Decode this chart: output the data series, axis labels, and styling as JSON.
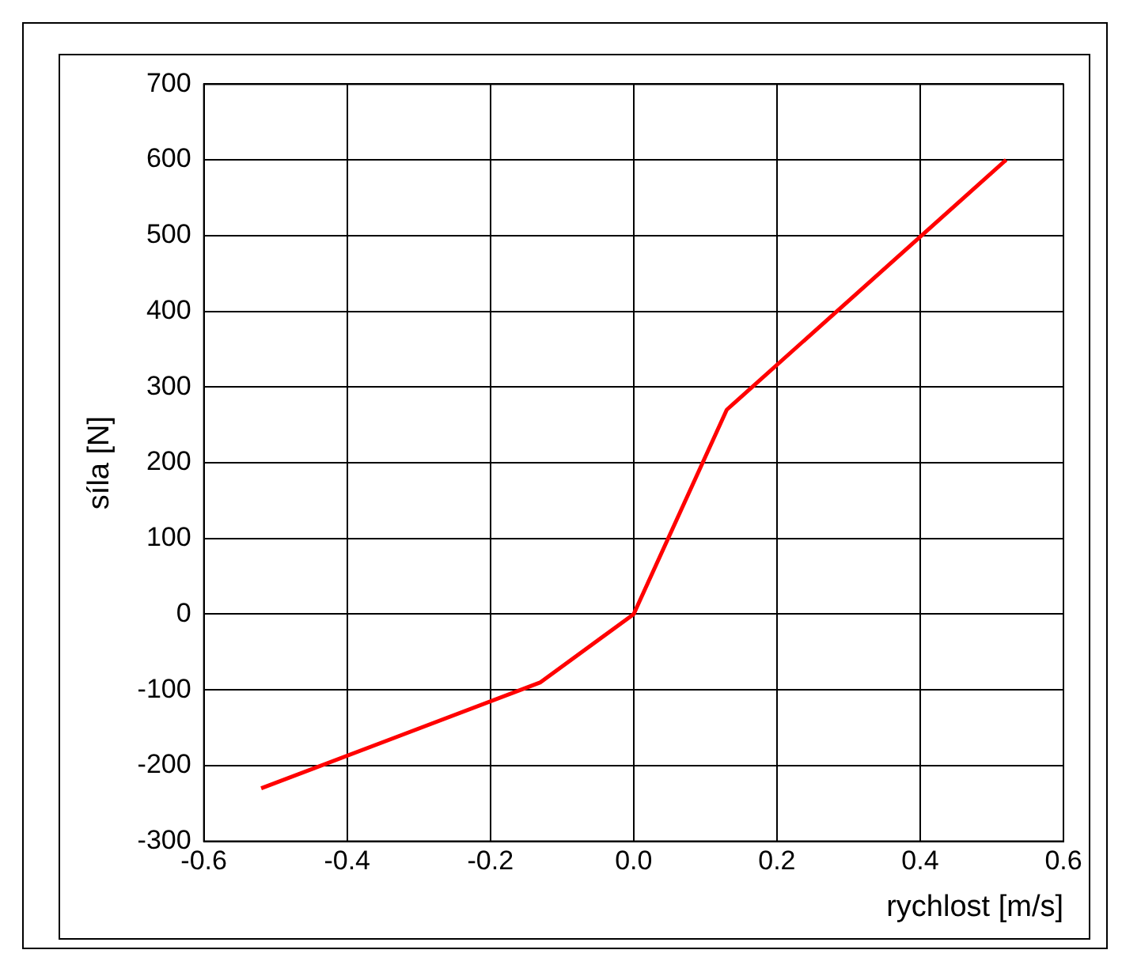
{
  "chart_data": {
    "type": "line",
    "xlabel": "rychlost [m/s]",
    "ylabel": "síla [N]",
    "x": [
      -0.52,
      -0.13,
      0,
      0.13,
      0.52
    ],
    "series": [
      {
        "color": "#ff0000",
        "values": [
          -230,
          -90,
          0,
          270,
          600
        ]
      }
    ],
    "xlim": [
      -0.6,
      0.6
    ],
    "xticks": [
      -0.6,
      -0.4,
      -0.2,
      {
        "value": 0,
        "label": "0.0"
      },
      0.2,
      0.4,
      0.6
    ],
    "ylim": [
      -300,
      700
    ],
    "yticks": [
      -300,
      -200,
      -100,
      0,
      100,
      200,
      300,
      400,
      500,
      600,
      700
    ],
    "grid": true,
    "legend": false,
    "marker": "none",
    "line_style": "solid"
  }
}
